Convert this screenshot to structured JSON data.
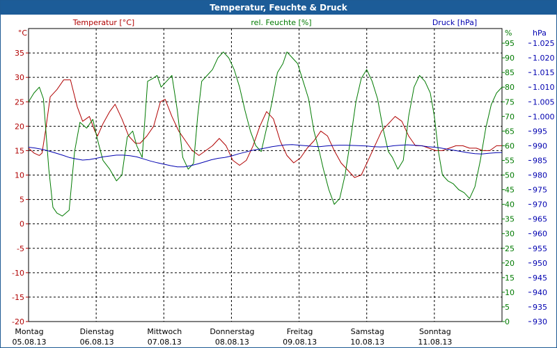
{
  "window": {
    "title": "Temperatur, Feuchte & Druck"
  },
  "colors": {
    "temperature": "#b00000",
    "humidity": "#007a00",
    "pressure": "#0000b0",
    "title_bar": "#1c5c98",
    "grid": "#000000"
  },
  "chart_data": {
    "type": "line",
    "title": "Temperatur, Feuchte & Druck",
    "grid": true,
    "x_range_days": [
      0,
      7
    ],
    "x_ticks": [
      {
        "day": "Montag",
        "date": "05.08.13"
      },
      {
        "day": "Dienstag",
        "date": "06.08.13"
      },
      {
        "day": "Mittwoch",
        "date": "07.08.13"
      },
      {
        "day": "Donnerstag",
        "date": "08.08.13"
      },
      {
        "day": "Freitag",
        "date": "09.08.13"
      },
      {
        "day": "Samstag",
        "date": "10.08.13"
      },
      {
        "day": "Sonntag",
        "date": "11.08.13"
      }
    ],
    "axes": {
      "temperature": {
        "label": "Temperatur [°C]",
        "unit": "°C",
        "range": [
          -20,
          40
        ],
        "ticks": [
          "35",
          "30",
          "25",
          "20",
          "15",
          "10",
          "5",
          "0",
          "-5",
          "-10",
          "-15",
          "-20"
        ]
      },
      "humidity": {
        "label": "rel. Feuchte [%]",
        "unit": "%",
        "range": [
          0,
          100
        ],
        "ticks": [
          "95",
          "90",
          "85",
          "80",
          "75",
          "70",
          "65",
          "60",
          "55",
          "50",
          "45",
          "40",
          "35",
          "30",
          "25",
          "20",
          "15",
          "10",
          "5",
          "0"
        ]
      },
      "pressure": {
        "label": "Druck [hPa]",
        "unit": "hPa",
        "range": [
          930,
          1030
        ],
        "ticks": [
          "1.025",
          "1.020",
          "1.015",
          "1.010",
          "1.005",
          "1.000",
          "995",
          "990",
          "985",
          "980",
          "975",
          "970",
          "965",
          "960",
          "955",
          "950",
          "945",
          "940",
          "935",
          "930"
        ]
      }
    },
    "series": [
      {
        "name": "Temperatur [°C]",
        "axis": "temperature",
        "x": [
          0,
          0.08,
          0.16,
          0.2,
          0.25,
          0.32,
          0.42,
          0.52,
          0.62,
          0.72,
          0.8,
          0.9,
          0.98,
          1.02,
          1.1,
          1.2,
          1.28,
          1.38,
          1.48,
          1.58,
          1.65,
          1.75,
          1.85,
          1.95,
          2.02,
          2.12,
          2.22,
          2.32,
          2.42,
          2.52,
          2.62,
          2.72,
          2.82,
          2.92,
          3.02,
          3.12,
          3.22,
          3.32,
          3.42,
          3.52,
          3.62,
          3.72,
          3.82,
          3.92,
          4.02,
          4.12,
          4.22,
          4.32,
          4.42,
          4.52,
          4.62,
          4.72,
          4.82,
          4.92,
          5.02,
          5.12,
          5.22,
          5.32,
          5.42,
          5.52,
          5.62,
          5.72,
          5.82,
          5.92,
          6.02,
          6.12,
          6.22,
          6.32,
          6.42,
          6.52,
          6.62,
          6.72,
          6.82,
          6.92,
          7.0
        ],
        "values": [
          15.5,
          14.5,
          14,
          14.5,
          19,
          26,
          27.5,
          29.5,
          29.5,
          24,
          21,
          22,
          19,
          18,
          20.5,
          23,
          24.5,
          21.5,
          18,
          16.5,
          16.5,
          18,
          20,
          25,
          25.5,
          22,
          19,
          17,
          15,
          14,
          15,
          16,
          17.5,
          16,
          13,
          12,
          13,
          16,
          20,
          23,
          21.5,
          17,
          14,
          12.5,
          13.5,
          15.5,
          17,
          19,
          18,
          15,
          12.5,
          11,
          9.5,
          10,
          13,
          16,
          19,
          20.5,
          22,
          21,
          18,
          16,
          16,
          15.5,
          15,
          15,
          15.5,
          16,
          16,
          15.5,
          15.5,
          15,
          15,
          16,
          16
        ]
      },
      {
        "name": "rel. Feuchte [%]",
        "axis": "humidity",
        "x": [
          0,
          0.08,
          0.16,
          0.22,
          0.3,
          0.36,
          0.42,
          0.5,
          0.6,
          0.68,
          0.76,
          0.86,
          0.95,
          1.02,
          1.1,
          1.2,
          1.3,
          1.38,
          1.46,
          1.54,
          1.6,
          1.68,
          1.76,
          1.84,
          1.9,
          1.96,
          2.04,
          2.12,
          2.2,
          2.28,
          2.36,
          2.44,
          2.5,
          2.56,
          2.64,
          2.72,
          2.8,
          2.88,
          2.96,
          3.04,
          3.12,
          3.2,
          3.28,
          3.36,
          3.44,
          3.52,
          3.6,
          3.68,
          3.76,
          3.82,
          3.9,
          3.98,
          4.06,
          4.14,
          4.22,
          4.3,
          4.36,
          4.44,
          4.52,
          4.6,
          4.68,
          4.76,
          4.84,
          4.92,
          5.0,
          5.08,
          5.16,
          5.24,
          5.32,
          5.38,
          5.46,
          5.54,
          5.62,
          5.7,
          5.78,
          5.86,
          5.94,
          6.0,
          6.06,
          6.12,
          6.2,
          6.28,
          6.36,
          6.44,
          6.52,
          6.6,
          6.68,
          6.76,
          6.84,
          6.92,
          7.0
        ],
        "values": [
          75,
          78,
          80,
          76,
          52,
          39,
          37,
          36,
          38,
          58,
          68,
          66,
          69,
          62,
          55,
          52,
          48,
          50,
          63,
          65,
          60,
          56,
          82,
          83,
          84,
          80,
          82,
          84,
          72,
          56,
          52,
          54,
          70,
          82,
          84,
          86,
          90,
          92,
          90,
          86,
          80,
          72,
          65,
          60,
          58,
          66,
          75,
          85,
          88,
          92,
          90,
          88,
          82,
          76,
          65,
          58,
          52,
          45,
          40,
          42,
          50,
          62,
          75,
          83,
          86,
          82,
          76,
          66,
          58,
          56,
          52,
          55,
          70,
          80,
          84,
          82,
          78,
          70,
          58,
          50,
          48,
          47,
          45,
          44,
          42,
          46,
          55,
          66,
          74,
          78,
          80
        ]
      },
      {
        "name": "Druck [hPa]",
        "axis": "pressure",
        "x": [
          0,
          0.1,
          0.2,
          0.3,
          0.4,
          0.5,
          0.6,
          0.7,
          0.8,
          0.9,
          1.0,
          1.1,
          1.2,
          1.3,
          1.4,
          1.5,
          1.6,
          1.7,
          1.8,
          1.9,
          2.0,
          2.1,
          2.2,
          2.3,
          2.4,
          2.5,
          2.6,
          2.7,
          2.8,
          2.9,
          3.0,
          3.1,
          3.2,
          3.3,
          3.4,
          3.5,
          3.6,
          3.7,
          3.8,
          3.9,
          4.0,
          4.1,
          4.2,
          4.3,
          4.4,
          4.5,
          4.6,
          4.7,
          4.8,
          4.9,
          5.0,
          5.1,
          5.2,
          5.3,
          5.4,
          5.5,
          5.6,
          5.7,
          5.8,
          5.9,
          6.0,
          6.1,
          6.2,
          6.3,
          6.4,
          6.5,
          6.6,
          6.7,
          6.8,
          6.9,
          7.0
        ],
        "values": [
          989.5,
          989.2,
          988.8,
          988.2,
          987.5,
          986.8,
          986,
          985.5,
          985.1,
          985.3,
          985.7,
          986.2,
          986.5,
          986.8,
          986.8,
          986.6,
          986.2,
          985.5,
          984.8,
          984.2,
          983.7,
          983.2,
          982.8,
          982.8,
          983.2,
          983.8,
          984.5,
          985.2,
          985.7,
          986,
          986.5,
          987.2,
          987.8,
          988.4,
          988.8,
          989.2,
          989.7,
          990,
          990.3,
          990.4,
          990.2,
          990,
          989.8,
          989.7,
          989.9,
          990.1,
          990.2,
          990.2,
          990.1,
          990,
          989.9,
          989.7,
          989.6,
          989.7,
          990,
          990.2,
          990.3,
          990.2,
          990,
          989.7,
          989.5,
          989.2,
          988.8,
          988.4,
          988,
          987.6,
          987.3,
          987.2,
          987.4,
          987.6,
          987.7
        ]
      }
    ]
  }
}
